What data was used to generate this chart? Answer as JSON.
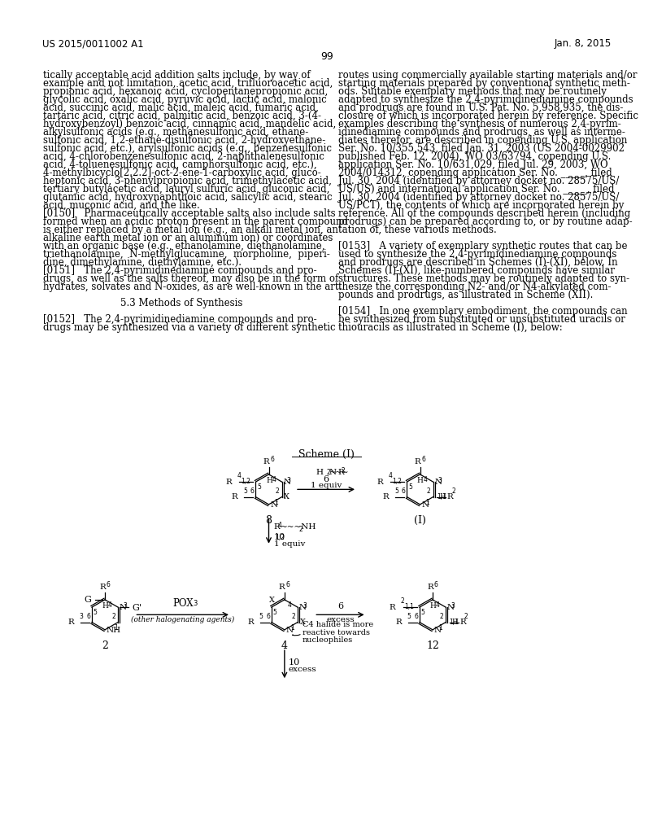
{
  "page_header_left": "US 2015/0011002 A1",
  "page_header_right": "Jan. 8, 2015",
  "page_number": "99",
  "background_color": "#ffffff",
  "text_color": "#000000",
  "left_column_text": [
    "tically acceptable acid addition salts include, by way of",
    "example and not limitation, acetic acid, trifluoroacetic acid,",
    "propionic acid, hexanoic acid, cyclopentanepropionic acid,",
    "glycolic acid, oxalic acid, pyruvic acid, lactic acid, malonic",
    "acid, succinic acid, malic acid, maleic acid, fumaric acid,",
    "tartaric acid, citric acid, palmitic acid, benzoic acid, 3-(4-",
    "hydroxybenzoyl) benzoic acid, cinnamic acid, mandelic acid,",
    "alkylsulfonic acids (e.g., methanesulfonic acid, ethane-",
    "sulfonic acid, 1,2-ethane-disulfonic acid, 2-hydroxyethane-",
    "sulfonic acid, etc.), arylsulfonic acids (e.g., benzenesulfonic",
    "acid, 4-chlorobenzenesulfonic acid, 2-naphthalenesulfonic",
    "acid, 4-toluenesulfonic acid, camphorsulfonic acid, etc.),",
    "4-methylbicyclo[2.2.2]-oct-2-ene-1-carboxylic acid, gluco-",
    "heptonic acid, 3-phenylpropionic acid, trimethylacetic acid,",
    "tertiary butylacetic acid, lauryl sulfuric acid, gluconic acid,",
    "glutamic acid, hydroxynaphthoic acid, salicylic acid, stearic",
    "acid, muconic acid, and the like.",
    "[0150]   Pharmaceutically acceptable salts also include salts",
    "formed when an acidic proton present in the parent compound",
    "is either replaced by a metal ion (e.g., an alkali metal ion, an",
    "alkaline earth metal ion or an aluminum ion) or coordinates",
    "with an organic base (e.g., ethanolamine, diethanolamine,",
    "triethanolamine,  N-methylglucamine,  morpholine,  piperi-",
    "dine, dimethylamine, diethylamine, etc.).",
    "[0151]   The 2,4-pyrimidinediamine compounds and pro-",
    "drugs, as well as the salts thereof, may also be in the form of",
    "hydrates, solvates and N-oxides, as are well-known in the art.",
    "",
    "5.3 Methods of Synthesis",
    "",
    "[0152]   The 2,4-pyrimidinediamine compounds and pro-",
    "drugs may be synthesized via a variety of different synthetic"
  ],
  "right_column_text": [
    "routes using commercially available starting materials and/or",
    "starting materials prepared by conventional synthetic meth-",
    "ods. Suitable exemplary methods that may be routinely",
    "adapted to synthesize the 2,4-pyrimidinediamine compounds",
    "and prodrugs are found in U.S. Pat. No. 5,958,935, the dis-",
    "closure of which is incorporated herein by reference. Specific",
    "examples describing the synthesis of numerous 2,4-pyrim-",
    "idinediamine compounds and prodrugs, as well as interme-",
    "diates therefor, are described in copending U.S. application",
    "Ser. No. 10/355,543, filed Jan. 31, 2003 (US 2004-0029902",
    "published Feb. 12, 2004), WO 03/63794, copending U.S.",
    "application Ser. No. 10/631,029, filed Jul. 29, 2003, WO",
    "2004/014312, copending application Ser. No. _____, filed",
    "Jul. 30, 2004 (identified by attorney docket no. 28575/US/",
    "US/US) and international application Ser. No. _____, filed",
    "Jul. 30, 2004 (identified by attorney docket no. 28575/US/",
    "US/PCT), the contents of which are incorporated herein by",
    "reference. All of the compounds described herein (including",
    "prodrugs) can be prepared according to, or by routine adap-",
    "tation of, these various methods.",
    "",
    "[0153]   A variety of exemplary synthetic routes that can be",
    "used to synthesize the 2,4-pyrimidinediamine compounds",
    "and prodrugs are described in Schemes (I)-(XI), below. In",
    "Schemes (I)-(XI), like-numbered compounds have similar",
    "structures. These methods may be routinely adapted to syn-",
    "thesize the corresponding N2- and/or N4-alkylated com-",
    "pounds and prodrugs, as illustrated in Scheme (XII).",
    "",
    "[0154]   In one exemplary embodiment, the compounds can",
    "be synthesized from substituted or unsubstituted uracils or",
    "thiouracils as illustrated in Scheme (I), below:"
  ],
  "scheme_title": "Scheme (I)"
}
